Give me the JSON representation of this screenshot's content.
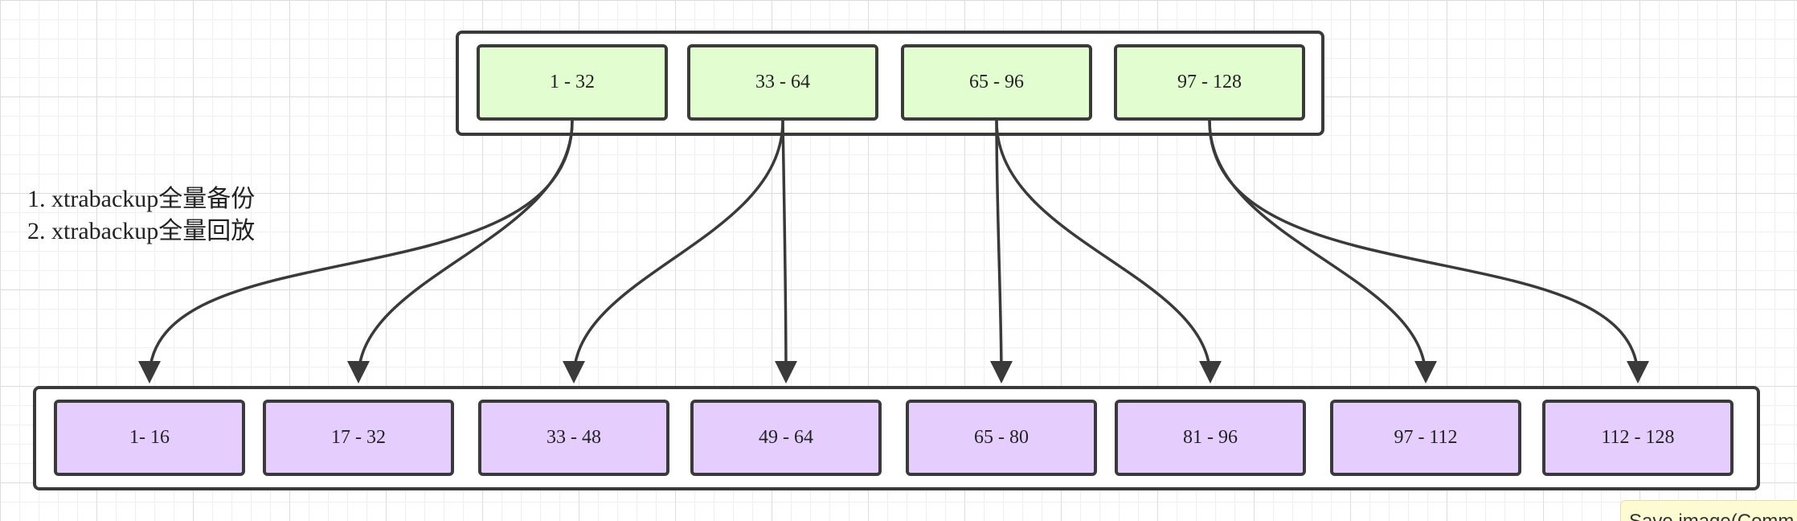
{
  "top_ranges": [
    "1 - 32",
    "33 - 64",
    "65 - 96",
    "97 - 128"
  ],
  "bottom_ranges": [
    "1- 16",
    "17 - 32",
    "33 - 48",
    "49 - 64",
    "65 - 80",
    "81 - 96",
    "97 - 112",
    "112 - 128"
  ],
  "notes": [
    "1. xtrabackup全量备份",
    "2. xtrabackup全量回放"
  ],
  "tooltip": "Save image(Comm",
  "colors": {
    "top_node_fill": "#e2fdd0",
    "bottom_node_fill": "#e5cdfd",
    "stroke": "#3a3a3a"
  }
}
